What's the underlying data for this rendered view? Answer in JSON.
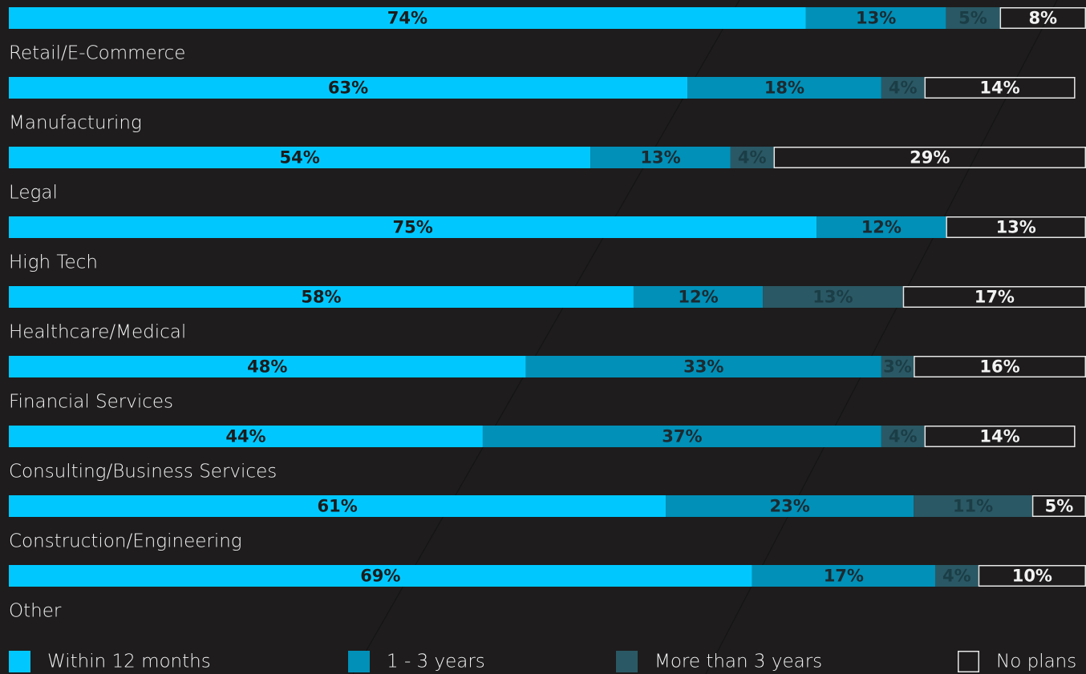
{
  "chart_data": {
    "type": "bar",
    "orientation": "horizontal",
    "stacked": true,
    "categories": [
      "Retail/E-Commerce",
      "Manufacturing",
      "Legal",
      "High Tech",
      "Healthcare/Medical",
      "Financial Services",
      "Consulting/Business Services",
      "Construction/Engineering",
      "Other"
    ],
    "xlim": [
      0,
      100
    ],
    "series": [
      {
        "name": "Within 12 months",
        "color": "#00c8ff",
        "label_color": "#1c1c1c",
        "values": [
          74,
          63,
          54,
          75,
          58,
          48,
          44,
          61,
          69
        ],
        "value_labels": [
          "74%",
          "63%",
          "54%",
          "75%",
          "58%",
          "48%",
          "44%",
          "61%",
          "69%"
        ]
      },
      {
        "name": "1 - 3 years",
        "color": "#0090b8",
        "label_color": "#1c2a30",
        "values": [
          13,
          18,
          13,
          12,
          12,
          33,
          37,
          23,
          17
        ],
        "value_labels": [
          "13%",
          "18%",
          "13%",
          "12%",
          "12%",
          "33%",
          "37%",
          "23%",
          "17%"
        ]
      },
      {
        "name": "More than 3 years",
        "color": "#2a5864",
        "label_color": "#1b3d46",
        "values": [
          5,
          4,
          4,
          null,
          13,
          3,
          4,
          11,
          4
        ],
        "value_labels": [
          "5%",
          "4%",
          "4%",
          null,
          "13%",
          "3%",
          "4%",
          "11%",
          "4%"
        ]
      },
      {
        "name": "No plans",
        "color": "none",
        "outline": "#e6e6e6",
        "label_color": "#f2f2f2",
        "values": [
          8,
          14,
          29,
          13,
          17,
          16,
          14,
          5,
          10
        ],
        "value_labels": [
          "8%",
          "14%",
          "29%",
          "13%",
          "17%",
          "16%",
          "14%",
          "5%",
          "10%"
        ]
      }
    ]
  }
}
